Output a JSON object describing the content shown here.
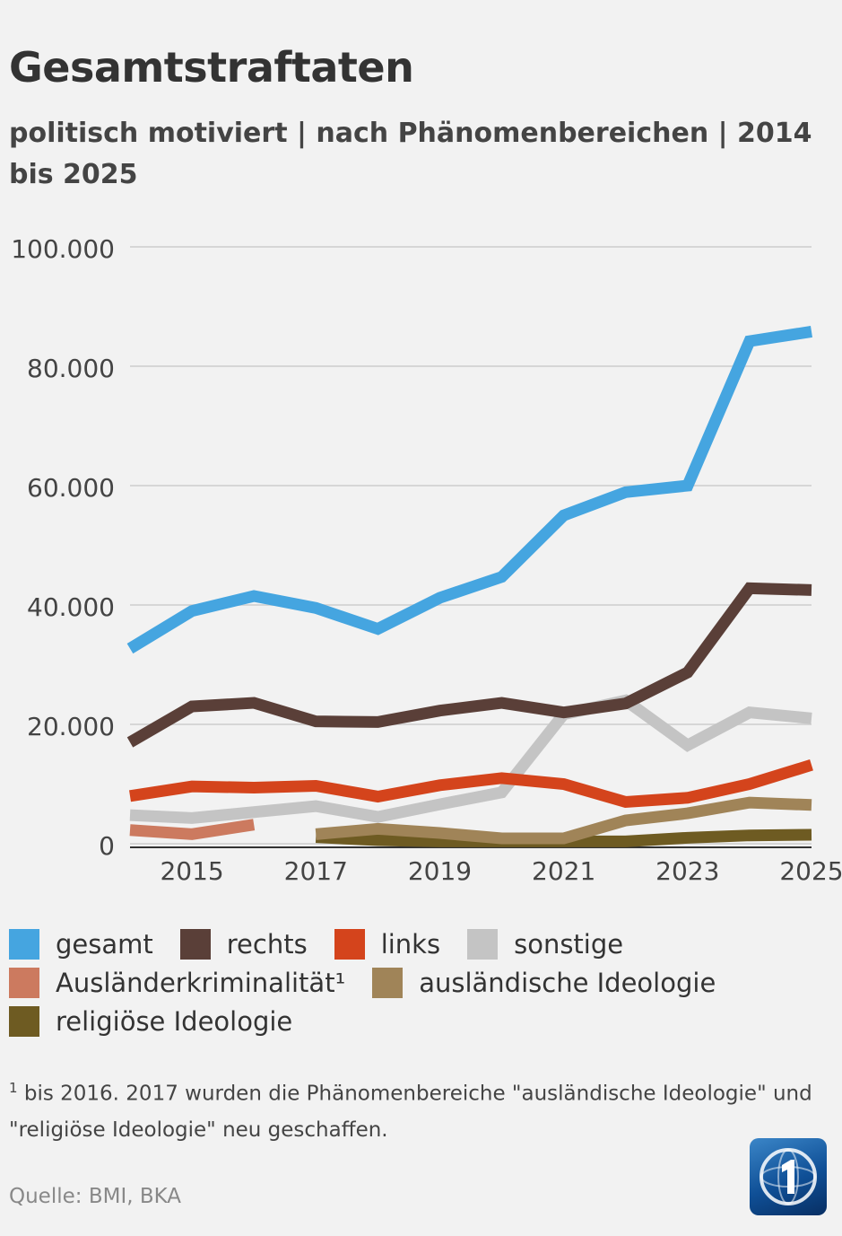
{
  "title": "Gesamtstraftaten",
  "subtitle": "politisch motiviert | nach Phänomenbereichen |  2014 bis 2025",
  "chart_data": {
    "type": "line",
    "title": "Gesamtstraftaten",
    "subtitle": "politisch motiviert | nach Phänomenbereichen |  2014 bis 2025",
    "x": [
      2014,
      2015,
      2016,
      2017,
      2018,
      2019,
      2020,
      2021,
      2022,
      2023,
      2024,
      2025
    ],
    "xticks": [
      "2015",
      "2017",
      "2019",
      "2021",
      "2023",
      "2025"
    ],
    "xtick_values": [
      2015,
      2017,
      2019,
      2021,
      2023,
      2025
    ],
    "yticks": [
      "0",
      "20.000",
      "40.000",
      "60.000",
      "80.000",
      "100.000"
    ],
    "ytick_values": [
      0,
      20000,
      40000,
      60000,
      80000,
      100000
    ],
    "ylim": [
      0,
      100000
    ],
    "grid": true,
    "legend_position": "bottom",
    "series": [
      {
        "name": "gesamt",
        "color": "#45a5e0",
        "values": [
          32700,
          39000,
          41500,
          39500,
          36000,
          41200,
          44700,
          55000,
          58900,
          60000,
          84200,
          85800
        ]
      },
      {
        "name": "rechts",
        "color": "#5a3f38",
        "values": [
          17000,
          23000,
          23600,
          20500,
          20400,
          22300,
          23600,
          22000,
          23500,
          28700,
          42800,
          42500
        ]
      },
      {
        "name": "links",
        "color": "#d4441c",
        "values": [
          8000,
          9600,
          9400,
          9700,
          7900,
          9800,
          11000,
          10000,
          7000,
          7700,
          10000,
          13200
        ]
      },
      {
        "name": "sonstige",
        "color": "#c4c4c4",
        "values": [
          4800,
          4300,
          5300,
          6300,
          4500,
          6600,
          8600,
          21700,
          24000,
          16500,
          22000,
          21000
        ]
      },
      {
        "name": "Ausländerkriminalität¹",
        "color": "#cc7a5f",
        "values": [
          2300,
          1600,
          3200,
          null,
          null,
          null,
          null,
          null,
          null,
          null,
          null,
          null
        ]
      },
      {
        "name": "ausländische Ideologie",
        "color": "#a08458",
        "values": [
          null,
          null,
          null,
          1600,
          2500,
          1800,
          900,
          900,
          3900,
          5100,
          6900,
          6500
        ]
      },
      {
        "name": "religiöse Ideologie",
        "color": "#6e5b22",
        "values": [
          null,
          null,
          null,
          1100,
          600,
          400,
          400,
          400,
          400,
          1000,
          1400,
          1500
        ]
      }
    ]
  },
  "legend_rows": [
    [
      0,
      1,
      2,
      3
    ],
    [
      4,
      5
    ],
    [
      6
    ]
  ],
  "footnote": {
    "marker": "1",
    "text": " bis 2016. 2017 wurden die Phänomenbereiche \"ausländische Ideologie\" und \"religiöse Ideologie\" neu geschaffen."
  },
  "source": "Quelle:  BMI, BKA",
  "logo_icon": "tagesschau-logo-icon"
}
